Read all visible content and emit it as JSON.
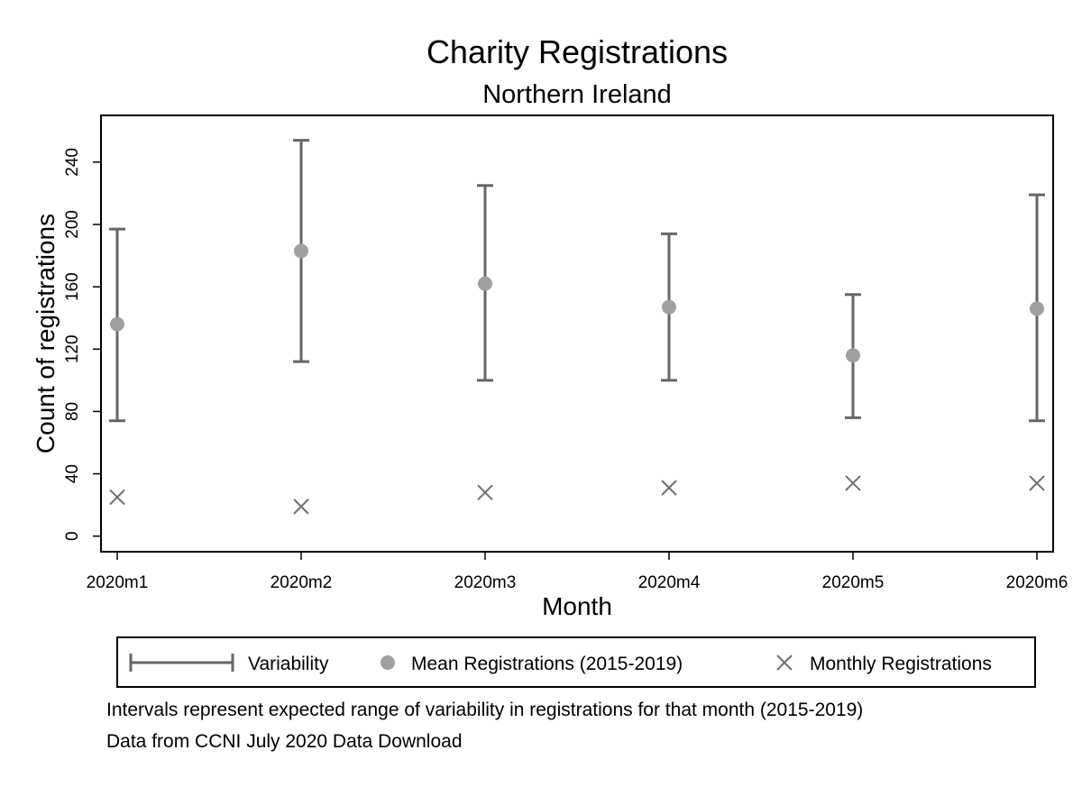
{
  "chart_data": {
    "type": "scatter",
    "title": "Charity Registrations",
    "subtitle": "Northern Ireland",
    "xlabel": "Month",
    "ylabel": "Count of registrations",
    "categories": [
      "2020m1",
      "2020m2",
      "2020m3",
      "2020m4",
      "2020m5",
      "2020m6"
    ],
    "ylim": [
      -10,
      270
    ],
    "yticks": [
      0,
      40,
      80,
      120,
      160,
      200,
      240
    ],
    "grid": false,
    "legend_position": "bottom",
    "series": [
      {
        "name": "Variability",
        "kind": "range",
        "low": [
          74,
          112,
          100,
          100,
          76,
          74
        ],
        "high": [
          197,
          254,
          225,
          194,
          155,
          219
        ],
        "color": "#666666"
      },
      {
        "name": "Mean Registrations (2015-2019)",
        "kind": "marker-circle",
        "values": [
          136,
          183,
          162,
          147,
          116,
          146
        ],
        "color": "#a0a0a0"
      },
      {
        "name": "Monthly Registrations",
        "kind": "marker-x",
        "values": [
          25,
          19,
          28,
          31,
          34,
          34
        ],
        "color": "#707070"
      }
    ],
    "notes": [
      "Intervals represent expected range of variability in registrations for that month (2015-2019)",
      "Data from CCNI July 2020 Data Download"
    ]
  }
}
